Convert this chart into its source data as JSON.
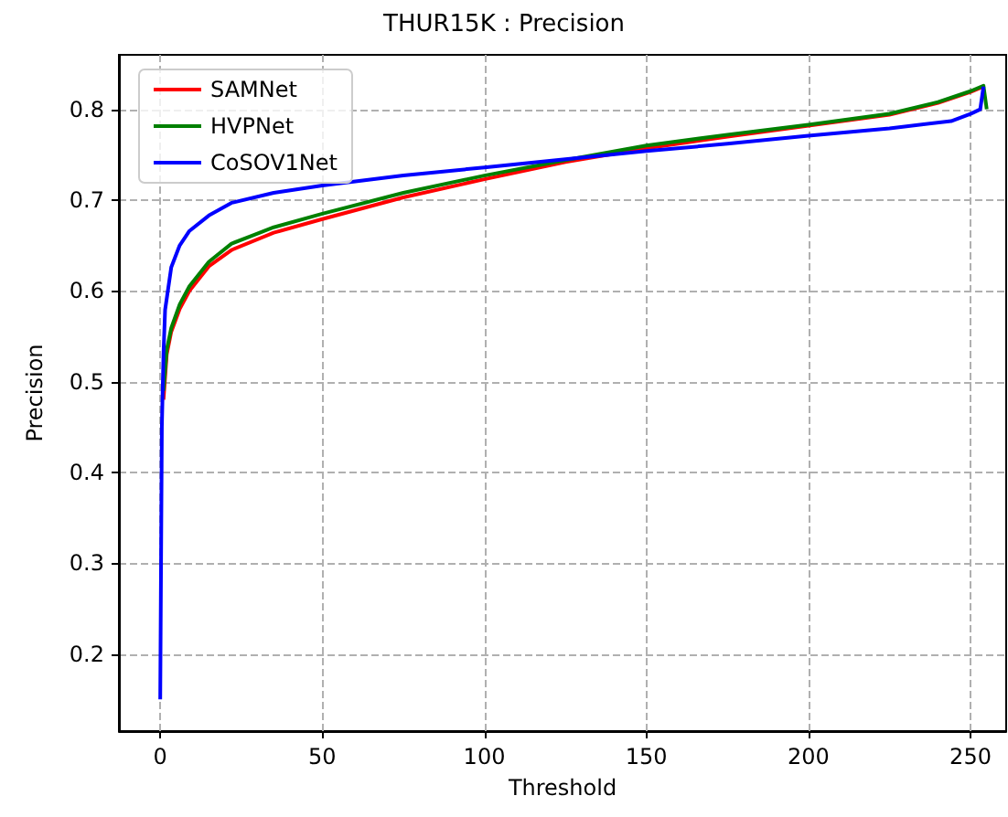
{
  "chart_data": {
    "type": "line",
    "title": "THUR15K : Precision",
    "xlabel": "Threshold",
    "ylabel": "Precision",
    "xlim": [
      -12.75,
      261
    ],
    "xticks": [
      0,
      50,
      100,
      150,
      200,
      250
    ],
    "ylim": [
      0.115,
      0.86
    ],
    "yticks": [
      0.2,
      0.3,
      0.4,
      0.5,
      0.6,
      0.7,
      0.8
    ],
    "grid": true,
    "legend": "top left",
    "line_style": "solid",
    "marker": "none",
    "series": [
      {
        "name": "SAMNet",
        "color": "#ff0000",
        "x": [
          1,
          2,
          3.4,
          6,
          9,
          15,
          22,
          35,
          50,
          75,
          100,
          125,
          150,
          175,
          200,
          225,
          240,
          250,
          254
        ],
        "values": [
          0.48,
          0.53,
          0.555,
          0.58,
          0.6,
          0.627,
          0.645,
          0.664,
          0.679,
          0.703,
          0.723,
          0.742,
          0.757,
          0.77,
          0.782,
          0.794,
          0.807,
          0.819,
          0.825
        ]
      },
      {
        "name": "HVPNet",
        "color": "#008000",
        "x": [
          1,
          2,
          3.4,
          6,
          9,
          15,
          22,
          35,
          50,
          75,
          100,
          125,
          150,
          175,
          200,
          225,
          240,
          250,
          254,
          255
        ],
        "values": [
          0.49,
          0.535,
          0.559,
          0.585,
          0.605,
          0.632,
          0.652,
          0.67,
          0.685,
          0.708,
          0.727,
          0.744,
          0.76,
          0.772,
          0.783,
          0.795,
          0.808,
          0.82,
          0.826,
          0.8
        ]
      },
      {
        "name": "CoSOV1Net",
        "color": "#0000ff",
        "x": [
          0,
          0.5,
          1,
          1.5,
          3.4,
          6,
          9,
          15,
          22,
          35,
          50,
          75,
          100,
          125,
          150,
          175,
          200,
          225,
          244,
          250,
          253,
          254
        ],
        "values": [
          0.15,
          0.45,
          0.53,
          0.579,
          0.626,
          0.65,
          0.666,
          0.683,
          0.697,
          0.708,
          0.716,
          0.727,
          0.736,
          0.745,
          0.754,
          0.762,
          0.771,
          0.779,
          0.787,
          0.795,
          0.8,
          0.825
        ]
      }
    ]
  }
}
